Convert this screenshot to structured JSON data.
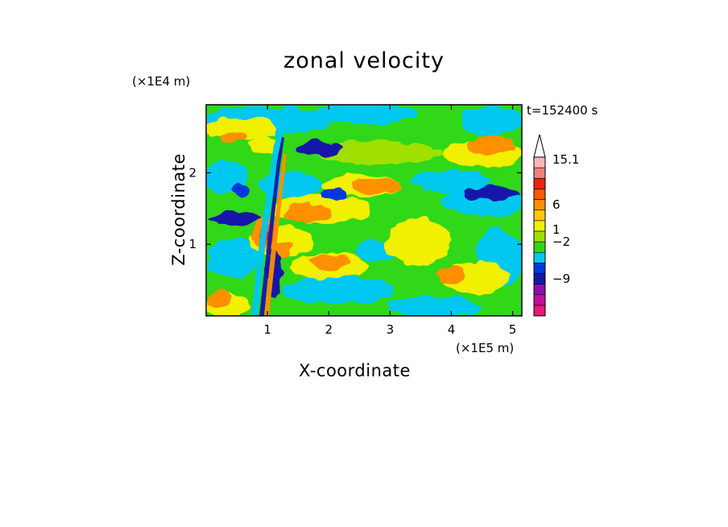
{
  "chart_data": {
    "type": "heatmap",
    "title": "zonal velocity",
    "xlabel": "X-coordinate",
    "ylabel": "Z-coordinate",
    "x_unit": "(×1E5 m)",
    "y_unit": "(×1E4 m)",
    "time_label": "t=152400 s",
    "xlim": [
      0,
      5.15
    ],
    "ylim": [
      0,
      2.95
    ],
    "x_ticks": [
      1,
      2,
      3,
      4,
      5
    ],
    "y_ticks": [
      1,
      2
    ],
    "colorbar": {
      "labels": [
        "15.1",
        "6",
        "1",
        "−2",
        "−9"
      ],
      "colors": [
        "#e8187c",
        "#c2109c",
        "#8a10a8",
        "#1418a8",
        "#0038e0",
        "#00c8f0",
        "#30d818",
        "#a0e000",
        "#f0f000",
        "#ffc800",
        "#ff9000",
        "#ff5800",
        "#f02010",
        "#f08080",
        "#f8b8b8"
      ]
    }
  }
}
